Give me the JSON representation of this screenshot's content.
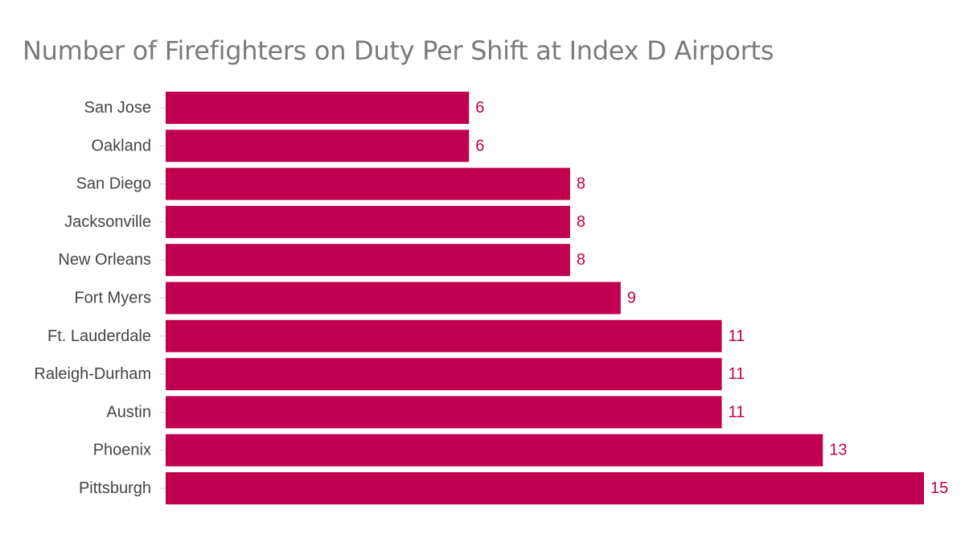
{
  "chart_data": {
    "type": "bar",
    "orientation": "horizontal",
    "title": "Number of Firefighters on Duty Per Shift at Index D Airports",
    "xlabel": "",
    "ylabel": "",
    "categories": [
      "San Jose",
      "Oakland",
      "San Diego",
      "Jacksonville",
      "New Orleans",
      "Fort Myers",
      "Ft. Lauderdale",
      "Raleigh-Durham",
      "Austin",
      "Phoenix",
      "Pittsburgh"
    ],
    "values": [
      6,
      6,
      8,
      8,
      8,
      9,
      11,
      11,
      11,
      13,
      15
    ],
    "xlim": [
      0,
      15
    ],
    "grid": false,
    "data_labels": true,
    "bar_color": "#c0004e",
    "label_color": "#c0004e"
  }
}
